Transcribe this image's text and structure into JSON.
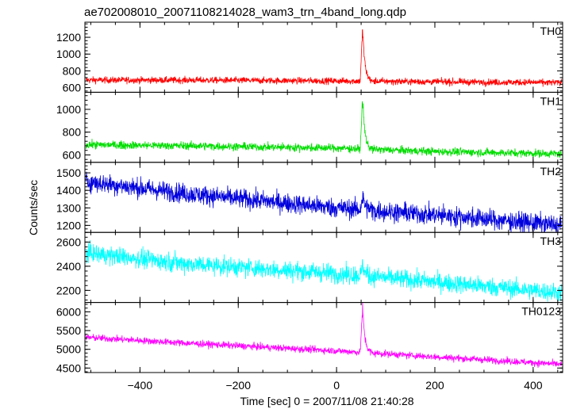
{
  "chart_data": {
    "type": "line",
    "title": "ae702008010_20071108214028_wam3_trn_4band_long.qdp",
    "xlabel": "Time [sec] 0 = 2007/11/08 21:40:28",
    "ylabel": "Counts/sec",
    "xlim": [
      -512,
      460
    ],
    "x_ticks": [
      -400,
      -200,
      0,
      200,
      400
    ],
    "x_tick_labels": [
      "−400",
      "−200",
      "0",
      "200",
      "400"
    ],
    "panels": [
      {
        "name": "TH0",
        "color": "#ff0000",
        "ylim": [
          545,
          1380
        ],
        "y_ticks": [
          600,
          800,
          1000,
          1200
        ],
        "baseline": [
          [
            -510,
            690
          ],
          [
            -300,
            690
          ],
          [
            0,
            680
          ],
          [
            200,
            670
          ],
          [
            458,
            660
          ]
        ],
        "noise": 28,
        "burst_peak": 1360
      },
      {
        "name": "TH1",
        "color": "#00dd00",
        "ylim": [
          535,
          1150
        ],
        "y_ticks": [
          600,
          800,
          1000
        ],
        "baseline": [
          [
            -510,
            690
          ],
          [
            -300,
            680
          ],
          [
            0,
            660
          ],
          [
            200,
            630
          ],
          [
            458,
            610
          ]
        ],
        "noise": 25,
        "burst_peak": 1130
      },
      {
        "name": "TH2",
        "color": "#0000dd",
        "ylim": [
          1160,
          1560
        ],
        "y_ticks": [
          1200,
          1300,
          1400,
          1500
        ],
        "baseline": [
          [
            -510,
            1450
          ],
          [
            -300,
            1380
          ],
          [
            0,
            1300
          ],
          [
            200,
            1260
          ],
          [
            458,
            1200
          ]
        ],
        "noise": 40,
        "burst_peak": 1370
      },
      {
        "name": "TH3",
        "color": "#00ffff",
        "ylim": [
          2100,
          2680
        ],
        "y_ticks": [
          2200,
          2400,
          2600
        ],
        "baseline": [
          [
            -510,
            2510
          ],
          [
            -300,
            2420
          ],
          [
            0,
            2340
          ],
          [
            200,
            2270
          ],
          [
            458,
            2180
          ]
        ],
        "noise": 55,
        "burst_peak": 2420
      },
      {
        "name": "TH0123",
        "color": "#ff00ff",
        "ylim": [
          4380,
          6250
        ],
        "y_ticks": [
          4500,
          5000,
          5500,
          6000
        ],
        "baseline": [
          [
            -510,
            5320
          ],
          [
            -300,
            5160
          ],
          [
            0,
            4960
          ],
          [
            200,
            4800
          ],
          [
            458,
            4600
          ]
        ],
        "noise": 65,
        "burst_peak": 6200
      }
    ],
    "burst": {
      "time": 53,
      "rise_start": 48,
      "decay_end": 72
    }
  }
}
